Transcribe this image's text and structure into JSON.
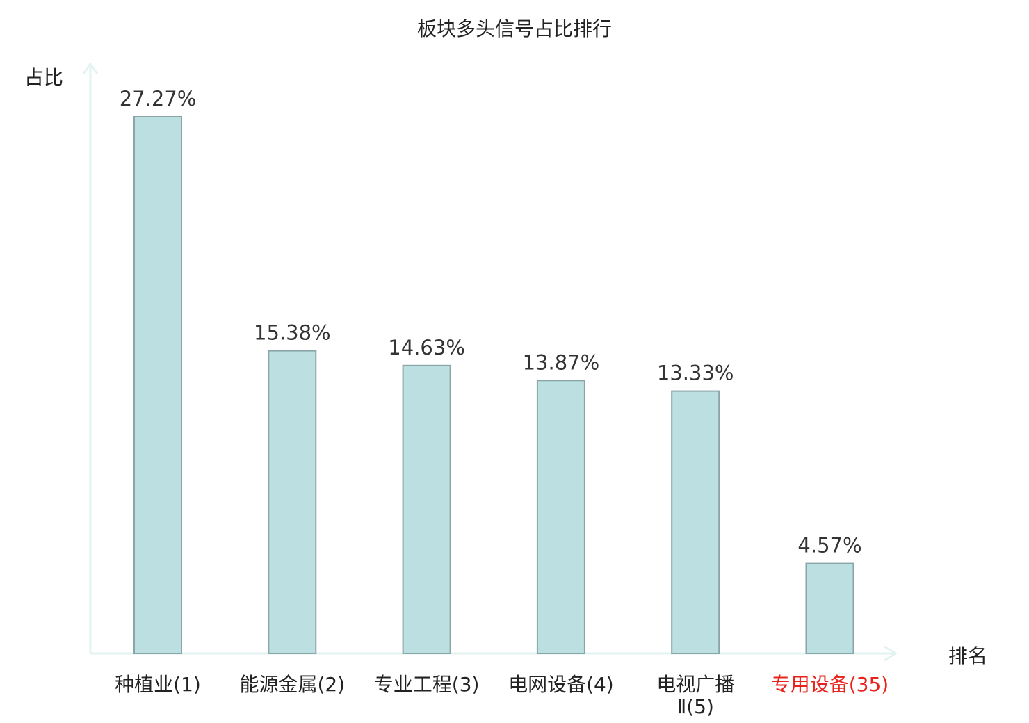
{
  "chart_data": {
    "type": "bar",
    "title": "板块多头信号占比排行",
    "ylabel": "占比",
    "xlabel": "排名",
    "categories": [
      {
        "name": "种植业",
        "rank": "(1)",
        "label_lines": [
          "种植业(1)"
        ],
        "highlight": false
      },
      {
        "name": "能源金属",
        "rank": "(2)",
        "label_lines": [
          "能源金属(2)"
        ],
        "highlight": false
      },
      {
        "name": "专业工程",
        "rank": "(3)",
        "label_lines": [
          "专业工程(3)"
        ],
        "highlight": false
      },
      {
        "name": "电网设备",
        "rank": "(4)",
        "label_lines": [
          "电网设备(4)"
        ],
        "highlight": false
      },
      {
        "name": "电视广播Ⅱ",
        "rank": "(5)",
        "label_lines": [
          "电视广播",
          "Ⅱ(5)"
        ],
        "highlight": false
      },
      {
        "name": "专用设备",
        "rank": "(35)",
        "label_lines": [
          "专用设备(35)"
        ],
        "highlight": true
      }
    ],
    "values": [
      27.27,
      15.38,
      14.63,
      13.87,
      13.33,
      4.57
    ],
    "value_labels": [
      "27.27%",
      "15.38%",
      "14.63%",
      "13.87%",
      "13.33%",
      "4.57%"
    ],
    "ylim": [
      0,
      27.27
    ],
    "grid": false,
    "colors": {
      "bar_fill": "#bce0e2",
      "bar_stroke": "#8aa5a8",
      "axis": "#e2f3f1",
      "text": "#222222",
      "value_text": "#333333",
      "highlight_text": "#e8231b"
    }
  }
}
